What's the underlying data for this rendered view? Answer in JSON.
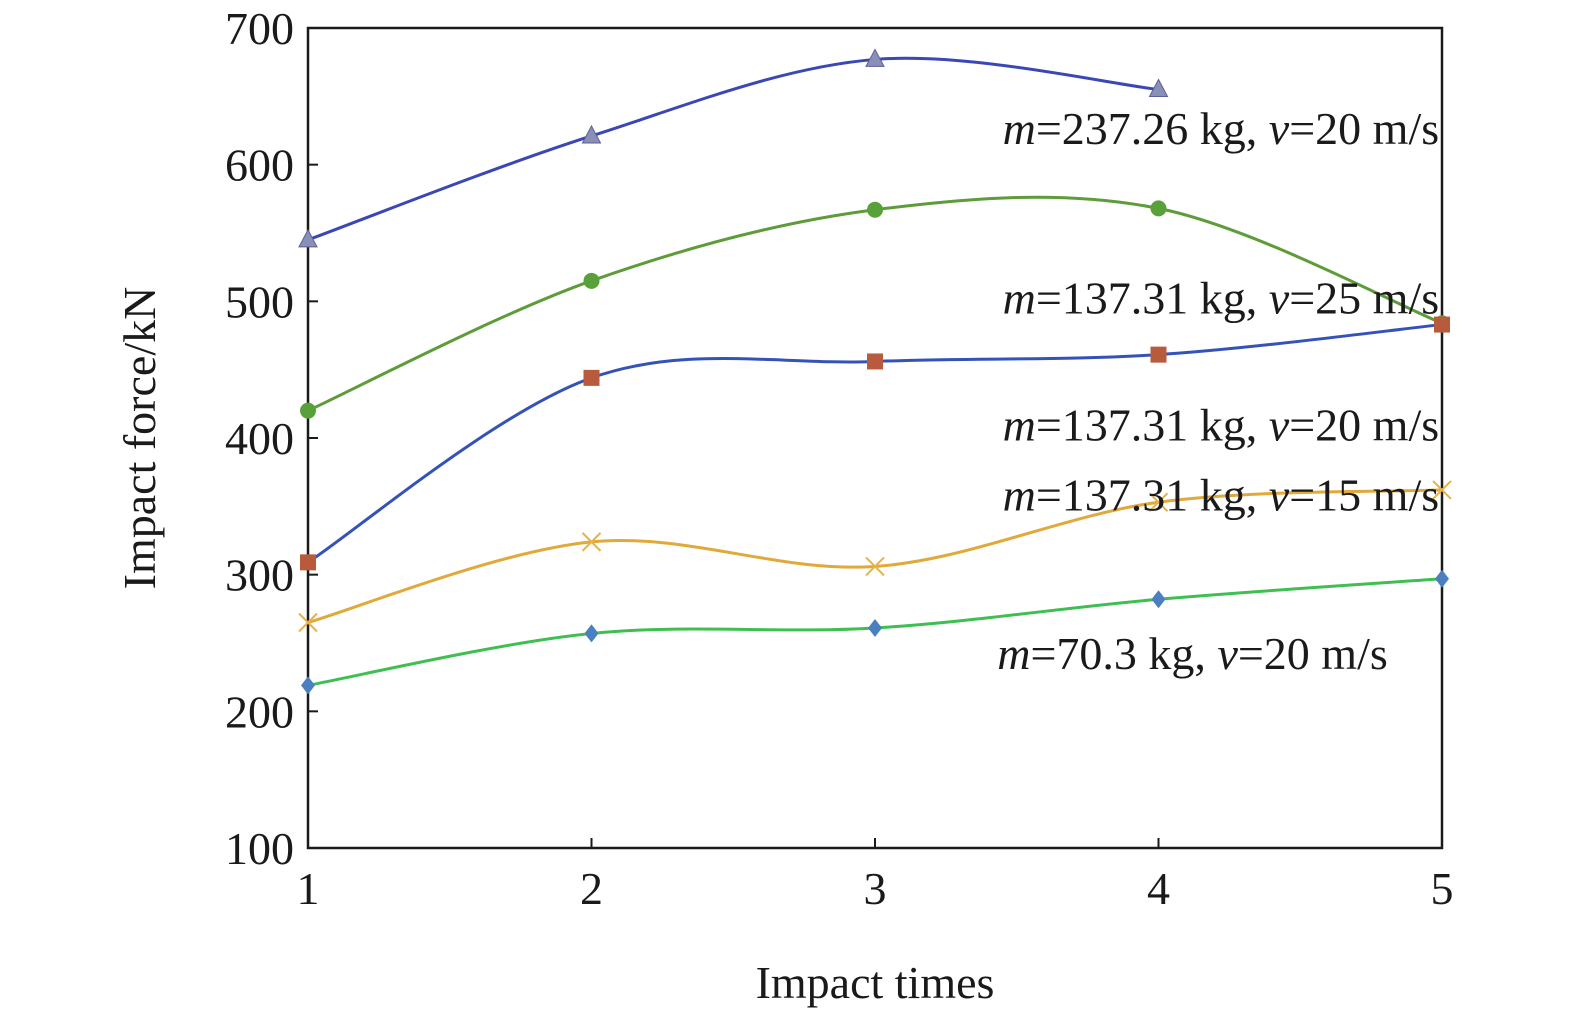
{
  "chart_data": {
    "type": "line",
    "xlabel": "Impact times",
    "ylabel": "Impact force/kN",
    "xlim": [
      1,
      5
    ],
    "ylim": [
      100,
      700
    ],
    "xticks": [
      "1",
      "2",
      "3",
      "4",
      "5"
    ],
    "yticks": [
      "100",
      "200",
      "300",
      "400",
      "500",
      "600",
      "700"
    ],
    "grid": false,
    "legend": "none",
    "series": [
      {
        "label_parts": [
          "m",
          "=237.26 kg, ",
          "v",
          "=20 m/s"
        ],
        "x": [
          1,
          2,
          3,
          4
        ],
        "y": [
          545,
          621,
          677,
          655
        ],
        "color": "#3a47b4",
        "marker": "triangle",
        "marker_color": "#8a8fb8"
      },
      {
        "label_parts": [
          "m",
          "=137.31 kg, ",
          "v",
          "=25 m/s"
        ],
        "x": [
          1,
          2,
          3,
          4,
          5
        ],
        "y": [
          420,
          515,
          567,
          568,
          484
        ],
        "color": "#5e9b39",
        "marker": "circle",
        "marker_color": "#58a03a"
      },
      {
        "label_parts": [
          "m",
          "=137.31 kg, ",
          "v",
          "=20 m/s"
        ],
        "x": [
          1,
          2,
          3,
          4,
          5
        ],
        "y": [
          309,
          444,
          456,
          461,
          483
        ],
        "color": "#3552b8",
        "marker": "square",
        "marker_color": "#b85a3c"
      },
      {
        "label_parts": [
          "m",
          "=137.31 kg, ",
          "v",
          "=15 m/s"
        ],
        "x": [
          1,
          2,
          3,
          4,
          5
        ],
        "y": [
          265,
          324,
          306,
          353,
          362
        ],
        "color": "#e0a93a",
        "marker": "x",
        "marker_color": "#e6b24a"
      },
      {
        "label_parts": [
          "m",
          "=70.3 kg, ",
          "v",
          "=20 m/s"
        ],
        "x": [
          1,
          2,
          3,
          4,
          5
        ],
        "y": [
          219,
          257,
          261,
          282,
          297
        ],
        "color": "#3fbf52",
        "marker": "diamond",
        "marker_color": "#4a7fc0"
      }
    ],
    "annotations": [
      {
        "series": 0,
        "anchor_x": 4.22,
        "anchor_y": 615
      },
      {
        "series": 1,
        "anchor_x": 4.22,
        "anchor_y": 491
      },
      {
        "series": 2,
        "anchor_x": 4.22,
        "anchor_y": 398
      },
      {
        "series": 3,
        "anchor_x": 4.22,
        "anchor_y": 347
      },
      {
        "series": 4,
        "anchor_x": 4.12,
        "anchor_y": 231
      }
    ]
  }
}
